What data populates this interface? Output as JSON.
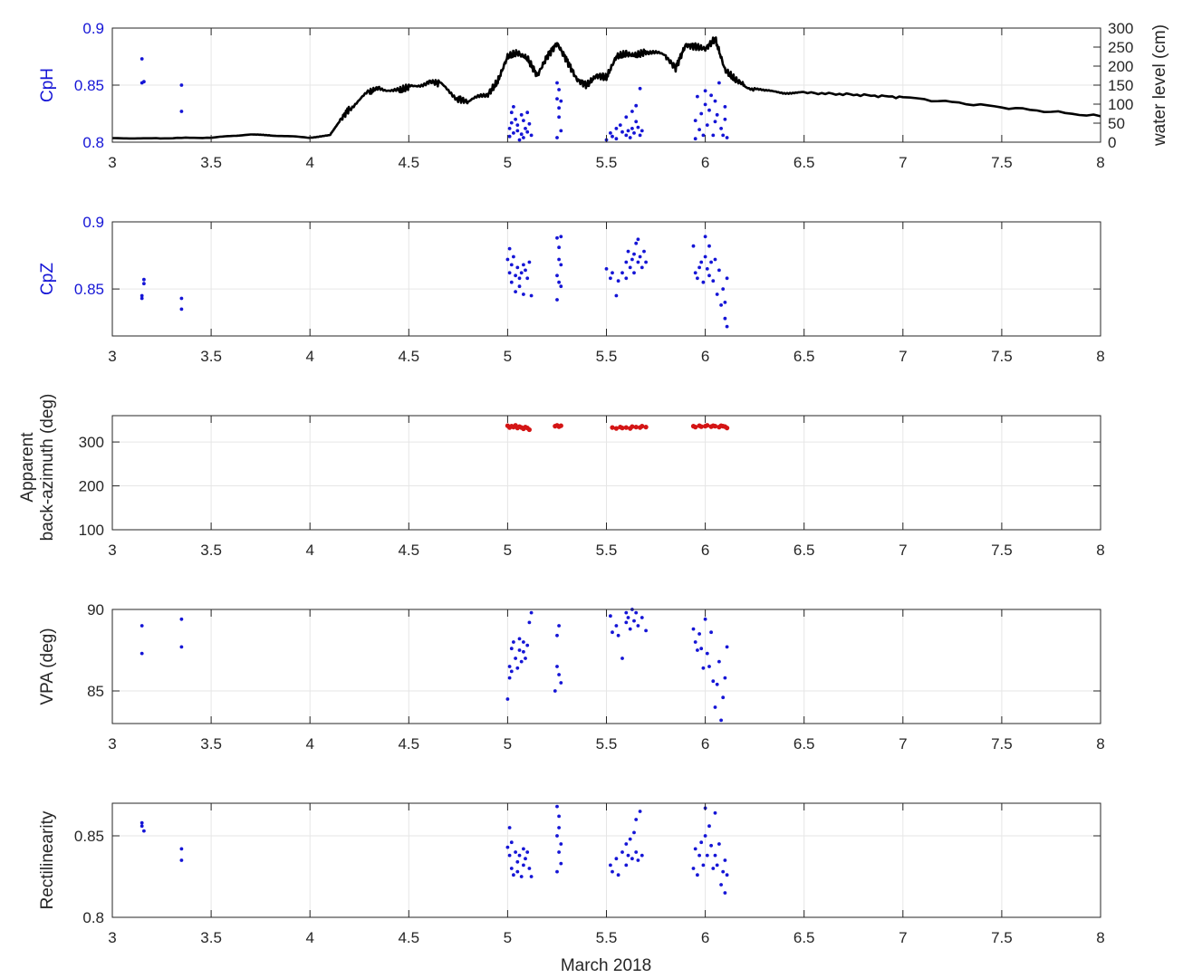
{
  "figure": {
    "xlabel": "March 2018"
  },
  "chart_data": [
    {
      "type": "scatter",
      "ylabel": "CpH",
      "y2label": "water level (cm)",
      "xlim": [
        3,
        8
      ],
      "ylim": [
        0.8,
        0.9
      ],
      "y2lim": [
        0,
        300
      ],
      "grid": true,
      "xticks": [
        3,
        3.5,
        4,
        4.5,
        5,
        5.5,
        6,
        6.5,
        7,
        7.5,
        8
      ],
      "xtick_labels": [
        "3",
        "3.5",
        "4",
        "4.5",
        "5",
        "5.5",
        "6",
        "6.5",
        "7",
        "7.5",
        "8"
      ],
      "yticks": [
        0.8,
        0.85,
        0.9
      ],
      "ytick_labels": [
        "0.8",
        "0.85",
        "0.9"
      ],
      "y2ticks": [
        0,
        50,
        100,
        150,
        200,
        250,
        300
      ],
      "y2tick_labels": [
        "0",
        "50",
        "100",
        "150",
        "200",
        "250",
        "300"
      ],
      "series": [
        {
          "type": "line",
          "axis": "right",
          "color": "#000000",
          "x": [
            3.0,
            3.2,
            3.5,
            3.7,
            3.8,
            4.0,
            4.1,
            4.15,
            4.2,
            4.3,
            4.35,
            4.45,
            4.5,
            4.6,
            4.65,
            4.75,
            4.8,
            4.9,
            4.95,
            5.0,
            5.05,
            5.1,
            5.15,
            5.2,
            5.25,
            5.3,
            5.35,
            5.4,
            5.45,
            5.5,
            5.55,
            5.6,
            5.65,
            5.7,
            5.8,
            5.85,
            5.9,
            5.95,
            6.0,
            6.05,
            6.1,
            6.15,
            6.2,
            6.3,
            6.4,
            6.5,
            6.75,
            7.0,
            7.5,
            8.0
          ],
          "y": [
            10,
            10,
            12,
            20,
            18,
            12,
            18,
            55,
            90,
            130,
            145,
            135,
            145,
            160,
            155,
            115,
            105,
            125,
            160,
            225,
            235,
            220,
            175,
            225,
            260,
            215,
            165,
            150,
            175,
            170,
            225,
            232,
            228,
            238,
            225,
            195,
            255,
            252,
            245,
            272,
            190,
            165,
            150,
            135,
            130,
            130,
            125,
            118,
            92,
            68
          ]
        },
        {
          "type": "scatter",
          "axis": "left",
          "color": "#1515d6",
          "x": [
            3.15,
            3.15,
            3.16,
            3.35,
            3.35,
            5.01,
            5.01,
            5.02,
            5.02,
            5.03,
            5.03,
            5.04,
            5.05,
            5.05,
            5.06,
            5.07,
            5.07,
            5.08,
            5.08,
            5.09,
            5.1,
            5.1,
            5.11,
            5.12,
            5.25,
            5.25,
            5.25,
            5.26,
            5.26,
            5.26,
            5.27,
            5.27,
            5.5,
            5.52,
            5.53,
            5.55,
            5.55,
            5.57,
            5.58,
            5.6,
            5.6,
            5.61,
            5.62,
            5.63,
            5.63,
            5.64,
            5.65,
            5.65,
            5.66,
            5.67,
            5.67,
            5.68,
            5.95,
            5.95,
            5.96,
            5.97,
            5.98,
            5.99,
            6.0,
            6.0,
            6.01,
            6.02,
            6.03,
            6.04,
            6.05,
            6.05,
            6.06,
            6.07,
            6.08,
            6.09,
            6.1,
            6.1,
            6.11
          ],
          "y": [
            0.873,
            0.852,
            0.853,
            0.85,
            0.827,
            0.805,
            0.812,
            0.826,
            0.817,
            0.831,
            0.808,
            0.82,
            0.81,
            0.815,
            0.802,
            0.824,
            0.807,
            0.819,
            0.804,
            0.812,
            0.826,
            0.809,
            0.816,
            0.806,
            0.804,
            0.838,
            0.852,
            0.822,
            0.83,
            0.846,
            0.81,
            0.836,
            0.802,
            0.808,
            0.805,
            0.812,
            0.803,
            0.815,
            0.809,
            0.806,
            0.822,
            0.81,
            0.804,
            0.827,
            0.812,
            0.808,
            0.818,
            0.832,
            0.813,
            0.847,
            0.806,
            0.81,
            0.803,
            0.819,
            0.84,
            0.811,
            0.825,
            0.806,
            0.833,
            0.845,
            0.815,
            0.828,
            0.841,
            0.806,
            0.836,
            0.818,
            0.824,
            0.852,
            0.812,
            0.806,
            0.82,
            0.831,
            0.804
          ]
        }
      ]
    },
    {
      "type": "scatter",
      "ylabel": "CpZ",
      "xlim": [
        3,
        8
      ],
      "ylim": [
        0.815,
        0.9
      ],
      "grid": true,
      "xticks": [
        3,
        3.5,
        4,
        4.5,
        5,
        5.5,
        6,
        6.5,
        7,
        7.5,
        8
      ],
      "xtick_labels": [
        "3",
        "3.5",
        "4",
        "4.5",
        "5",
        "5.5",
        "6",
        "6.5",
        "7",
        "7.5",
        "8"
      ],
      "yticks": [
        0.85,
        0.9
      ],
      "ytick_labels": [
        "0.85",
        "0.9"
      ],
      "series": [
        {
          "type": "scatter",
          "color": "#1515d6",
          "x": [
            3.15,
            3.15,
            3.16,
            3.16,
            3.35,
            3.35,
            5.0,
            5.01,
            5.01,
            5.02,
            5.02,
            5.03,
            5.04,
            5.04,
            5.05,
            5.06,
            5.06,
            5.07,
            5.08,
            5.08,
            5.09,
            5.1,
            5.11,
            5.12,
            5.25,
            5.25,
            5.25,
            5.26,
            5.26,
            5.26,
            5.27,
            5.27,
            5.27,
            5.5,
            5.52,
            5.53,
            5.55,
            5.56,
            5.58,
            5.6,
            5.6,
            5.61,
            5.62,
            5.63,
            5.64,
            5.64,
            5.65,
            5.66,
            5.66,
            5.67,
            5.68,
            5.69,
            5.7,
            5.94,
            5.95,
            5.96,
            5.97,
            5.98,
            5.99,
            6.0,
            6.0,
            6.01,
            6.02,
            6.02,
            6.03,
            6.04,
            6.05,
            6.06,
            6.07,
            6.08,
            6.09,
            6.1,
            6.1,
            6.11,
            6.11
          ],
          "y": [
            0.845,
            0.843,
            0.857,
            0.854,
            0.843,
            0.835,
            0.872,
            0.88,
            0.862,
            0.868,
            0.855,
            0.874,
            0.86,
            0.848,
            0.866,
            0.852,
            0.858,
            0.862,
            0.868,
            0.846,
            0.864,
            0.858,
            0.87,
            0.845,
            0.842,
            0.86,
            0.888,
            0.855,
            0.872,
            0.881,
            0.852,
            0.868,
            0.889,
            0.865,
            0.858,
            0.862,
            0.845,
            0.856,
            0.862,
            0.87,
            0.858,
            0.878,
            0.866,
            0.872,
            0.862,
            0.876,
            0.884,
            0.87,
            0.887,
            0.874,
            0.866,
            0.878,
            0.87,
            0.882,
            0.862,
            0.858,
            0.866,
            0.87,
            0.855,
            0.889,
            0.874,
            0.865,
            0.882,
            0.86,
            0.87,
            0.856,
            0.872,
            0.846,
            0.864,
            0.838,
            0.85,
            0.828,
            0.84,
            0.822,
            0.858
          ]
        }
      ]
    },
    {
      "type": "scatter",
      "ylabel": "Apparent back-azimuth (deg)",
      "xlim": [
        3,
        8
      ],
      "ylim": [
        100,
        360
      ],
      "grid": true,
      "xticks": [
        3,
        3.5,
        4,
        4.5,
        5,
        5.5,
        6,
        6.5,
        7,
        7.5,
        8
      ],
      "xtick_labels": [
        "3",
        "3.5",
        "4",
        "4.5",
        "5",
        "5.5",
        "6",
        "6.5",
        "7",
        "7.5",
        "8"
      ],
      "yticks": [
        100,
        200,
        300
      ],
      "ytick_labels": [
        "100",
        "200",
        "300"
      ],
      "series": [
        {
          "type": "scatter",
          "color": "#d41515",
          "x": [
            5.0,
            5.01,
            5.02,
            5.03,
            5.04,
            5.05,
            5.06,
            5.07,
            5.08,
            5.09,
            5.1,
            5.11,
            5.24,
            5.25,
            5.26,
            5.27,
            5.53,
            5.55,
            5.57,
            5.58,
            5.6,
            5.62,
            5.63,
            5.65,
            5.67,
            5.68,
            5.7,
            5.94,
            5.95,
            5.97,
            5.98,
            6.0,
            6.01,
            6.03,
            6.04,
            6.05,
            6.07,
            6.08,
            6.09,
            6.1,
            6.11
          ],
          "y": [
            337,
            333,
            336,
            334,
            338,
            332,
            335,
            333,
            330,
            334,
            332,
            328,
            336,
            338,
            335,
            337,
            333,
            331,
            334,
            332,
            333,
            331,
            335,
            334,
            333,
            336,
            334,
            336,
            334,
            337,
            335,
            336,
            338,
            335,
            337,
            336,
            334,
            337,
            336,
            335,
            332
          ]
        }
      ]
    },
    {
      "type": "scatter",
      "ylabel": "VPA (deg)",
      "xlim": [
        3,
        8
      ],
      "ylim": [
        83,
        90
      ],
      "grid": true,
      "xticks": [
        3,
        3.5,
        4,
        4.5,
        5,
        5.5,
        6,
        6.5,
        7,
        7.5,
        8
      ],
      "xtick_labels": [
        "3",
        "3.5",
        "4",
        "4.5",
        "5",
        "5.5",
        "6",
        "6.5",
        "7",
        "7.5",
        "8"
      ],
      "yticks": [
        85,
        90
      ],
      "ytick_labels": [
        "85",
        "90"
      ],
      "series": [
        {
          "type": "scatter",
          "color": "#1515d6",
          "x": [
            3.15,
            3.15,
            3.35,
            3.35,
            5.0,
            5.01,
            5.01,
            5.02,
            5.02,
            5.03,
            5.04,
            5.05,
            5.06,
            5.06,
            5.07,
            5.08,
            5.08,
            5.09,
            5.1,
            5.11,
            5.12,
            5.24,
            5.25,
            5.25,
            5.26,
            5.26,
            5.27,
            5.52,
            5.53,
            5.55,
            5.56,
            5.58,
            5.6,
            5.6,
            5.61,
            5.62,
            5.63,
            5.64,
            5.65,
            5.66,
            5.68,
            5.7,
            5.94,
            5.95,
            5.96,
            5.97,
            5.98,
            5.99,
            6.0,
            6.01,
            6.02,
            6.03,
            6.04,
            6.05,
            6.06,
            6.07,
            6.08,
            6.09,
            6.1,
            6.11
          ],
          "y": [
            87.3,
            89.0,
            89.4,
            87.7,
            84.5,
            86.5,
            85.8,
            87.6,
            86.2,
            88.0,
            87.0,
            86.4,
            87.5,
            88.2,
            86.8,
            87.4,
            88.0,
            87.0,
            87.8,
            89.2,
            89.8,
            85.0,
            86.5,
            88.4,
            86.0,
            89.0,
            85.5,
            89.6,
            88.6,
            89.0,
            88.4,
            87.0,
            89.8,
            89.2,
            89.5,
            88.8,
            90.0,
            89.3,
            89.8,
            89.0,
            89.5,
            88.7,
            88.8,
            88.0,
            87.5,
            88.5,
            87.6,
            86.4,
            89.4,
            87.3,
            86.5,
            88.6,
            85.6,
            84.0,
            85.4,
            86.8,
            83.2,
            84.6,
            85.8,
            87.7
          ]
        }
      ]
    },
    {
      "type": "scatter",
      "ylabel": "Rectilinearity",
      "xlim": [
        3,
        8
      ],
      "ylim": [
        0.8,
        0.87
      ],
      "grid": true,
      "xticks": [
        3,
        3.5,
        4,
        4.5,
        5,
        5.5,
        6,
        6.5,
        7,
        7.5,
        8
      ],
      "xtick_labels": [
        "3",
        "3.5",
        "4",
        "4.5",
        "5",
        "5.5",
        "6",
        "6.5",
        "7",
        "7.5",
        "8"
      ],
      "yticks": [
        0.8,
        0.85
      ],
      "ytick_labels": [
        "0.8",
        "0.85"
      ],
      "series": [
        {
          "type": "scatter",
          "color": "#1515d6",
          "x": [
            3.15,
            3.15,
            3.16,
            3.35,
            3.35,
            5.0,
            5.01,
            5.01,
            5.02,
            5.02,
            5.03,
            5.04,
            5.05,
            5.05,
            5.06,
            5.07,
            5.08,
            5.08,
            5.09,
            5.1,
            5.11,
            5.12,
            5.25,
            5.25,
            5.25,
            5.26,
            5.26,
            5.26,
            5.27,
            5.27,
            5.52,
            5.53,
            5.55,
            5.56,
            5.58,
            5.6,
            5.6,
            5.61,
            5.62,
            5.63,
            5.64,
            5.65,
            5.65,
            5.66,
            5.67,
            5.68,
            5.94,
            5.95,
            5.96,
            5.97,
            5.98,
            5.99,
            6.0,
            6.0,
            6.01,
            6.02,
            6.03,
            6.04,
            6.05,
            6.05,
            6.06,
            6.07,
            6.08,
            6.09,
            6.1,
            6.1,
            6.11
          ],
          "y": [
            0.858,
            0.856,
            0.853,
            0.842,
            0.835,
            0.843,
            0.855,
            0.838,
            0.83,
            0.846,
            0.826,
            0.84,
            0.834,
            0.828,
            0.838,
            0.825,
            0.842,
            0.832,
            0.836,
            0.84,
            0.83,
            0.825,
            0.828,
            0.85,
            0.868,
            0.84,
            0.855,
            0.862,
            0.833,
            0.845,
            0.832,
            0.828,
            0.836,
            0.826,
            0.84,
            0.832,
            0.845,
            0.838,
            0.848,
            0.836,
            0.852,
            0.84,
            0.86,
            0.835,
            0.865,
            0.838,
            0.83,
            0.842,
            0.826,
            0.838,
            0.846,
            0.832,
            0.85,
            0.867,
            0.838,
            0.856,
            0.844,
            0.83,
            0.864,
            0.838,
            0.832,
            0.845,
            0.82,
            0.828,
            0.815,
            0.835,
            0.826
          ]
        }
      ]
    }
  ]
}
